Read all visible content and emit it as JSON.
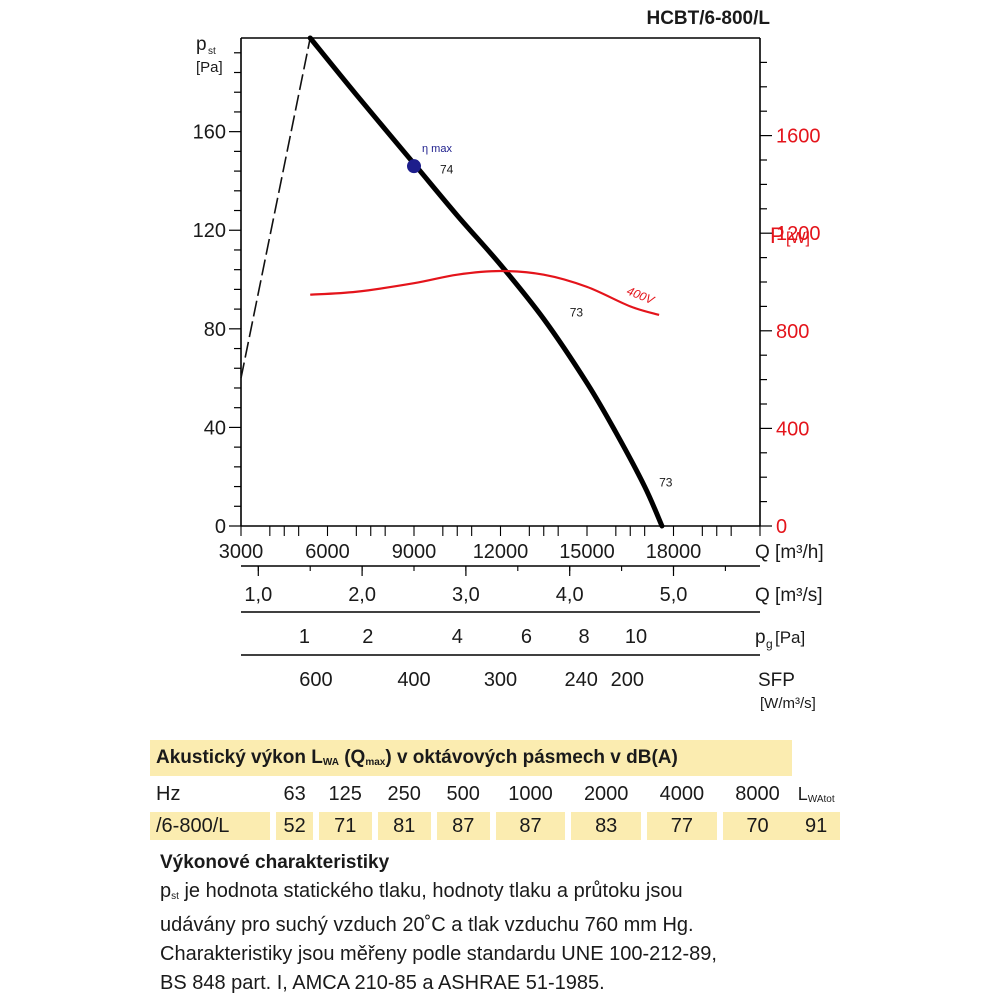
{
  "chart_data": {
    "type": "line",
    "title": "HCBT/6-800/L",
    "y_left_label": "p",
    "y_left_label_sub": "st",
    "y_left_unit": "[Pa]",
    "y_left_ticks": [
      0,
      40,
      80,
      120,
      160
    ],
    "ylim_left": [
      0,
      198
    ],
    "y_right_label": "P",
    "y_right_unit": "[W]",
    "y_right_ticks": [
      0,
      400,
      800,
      1200,
      1600
    ],
    "ylim_right": [
      0,
      2000
    ],
    "x_label": "Q [m³/h]",
    "x_ticks": [
      3000,
      6000,
      9000,
      12000,
      15000,
      18000
    ],
    "xlim": [
      3000,
      21000
    ],
    "axis2_label": "Q [m³/s]",
    "axis2_ticks": [
      {
        "label": "1,0",
        "x": 3600
      },
      {
        "label": "2,0",
        "x": 7200
      },
      {
        "label": "3,0",
        "x": 10800
      },
      {
        "label": "4,0",
        "x": 14400
      },
      {
        "label": "5,0",
        "x": 18000
      }
    ],
    "axis3_label": "p",
    "axis3_label_sub": "g",
    "axis3_unit": "[Pa]",
    "axis3_ticks": [
      {
        "label": "1",
        "x": 5200
      },
      {
        "label": "2",
        "x": 7400
      },
      {
        "label": "4",
        "x": 10500
      },
      {
        "label": "6",
        "x": 12900
      },
      {
        "label": "8",
        "x": 14900
      },
      {
        "label": "10",
        "x": 16700
      }
    ],
    "axis4_label": "SFP",
    "axis4_unit": "[W/m³/s]",
    "axis4_ticks": [
      {
        "label": "600",
        "x": 5600
      },
      {
        "label": "400",
        "x": 9000
      },
      {
        "label": "300",
        "x": 12000
      },
      {
        "label": "240",
        "x": 14800
      },
      {
        "label": "200",
        "x": 16400
      }
    ],
    "series": [
      {
        "label": "pressure curve",
        "axis": "left",
        "x": [
          5400,
          7000,
          9000,
          10500,
          12000,
          13500,
          15000,
          16000,
          17000,
          17600
        ],
        "y": [
          198,
          175,
          147,
          126,
          106,
          84,
          58,
          38,
          16,
          0
        ]
      },
      {
        "label": "dashed limit",
        "axis": "left",
        "dashed": true,
        "x": [
          3000,
          5400
        ],
        "y": [
          60,
          198
        ]
      },
      {
        "name": "400V",
        "axis": "right",
        "color": "#e4141b",
        "x": [
          5400,
          7000,
          9000,
          10500,
          12000,
          13500,
          15000,
          16500,
          17500
        ],
        "y": [
          948,
          960,
          995,
          1030,
          1045,
          1030,
          980,
          900,
          865
        ]
      }
    ],
    "points": [
      {
        "label": "η max",
        "x": 9000,
        "y": 146
      }
    ],
    "annotations": [
      {
        "text": "74",
        "x": 9900,
        "y": 143
      },
      {
        "text": "73",
        "x": 14400,
        "y": 85
      },
      {
        "text": "73",
        "x": 17500,
        "y": 16
      }
    ]
  },
  "table": {
    "title": "Akustický výkon L",
    "title_sub": "WA",
    "title_mid": " (Q",
    "title_sub2": "max",
    "title_end": ") v oktávových pásmech v dB(A)",
    "hz_label": "Hz",
    "freqs": [
      "63",
      "125",
      "250",
      "500",
      "1000",
      "2000",
      "4000",
      "8000"
    ],
    "total_label": "L",
    "total_sub": "WAtot",
    "row_label": "/6-800/L",
    "values": [
      "52",
      "71",
      "81",
      "87",
      "87",
      "83",
      "77",
      "70"
    ],
    "total_value": "91"
  },
  "notes": {
    "heading": "Výkonové charakteristiky",
    "p_symbol": "p",
    "p_sub": "st",
    "line1": " je hodnota statického tlaku, hodnoty tlaku a průtoku jsou",
    "line2": "udávány pro suchý vzduch 20˚C a tlak vzduchu 760 mm Hg.",
    "line3": "Charakteristiky jsou měřeny podle standardu UNE 100-212-89,",
    "line4": "BS 848 part. I, AMCA 210-85 a ASHRAE 51-1985."
  },
  "colors": {
    "power": "#e4141b",
    "point": "#1d1e8c",
    "table_fill": "#fbecb0"
  }
}
